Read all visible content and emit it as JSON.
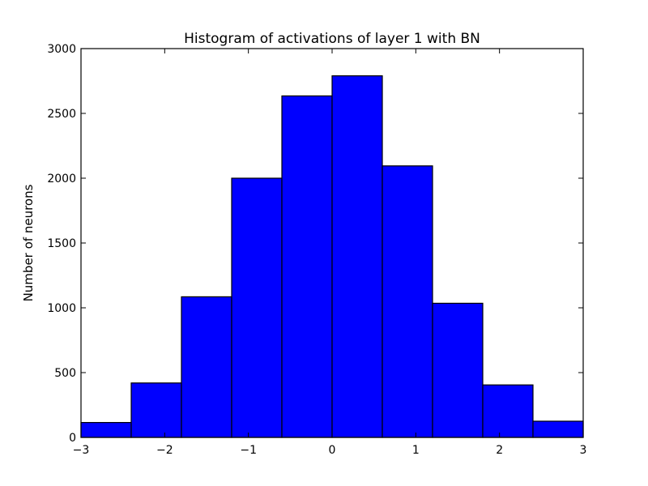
{
  "chart_data": {
    "type": "bar",
    "title": "Histogram of activations of layer 1  with BN",
    "xlabel": "",
    "ylabel": "Number of neurons",
    "xlim": [
      -3,
      3
    ],
    "ylim": [
      0,
      3000
    ],
    "bin_edges": [
      -3,
      -2.4,
      -1.8,
      -1.2,
      -0.6,
      0,
      0.6,
      1.2,
      1.8,
      2.4,
      3
    ],
    "values": [
      115,
      420,
      1085,
      2000,
      2635,
      2790,
      2095,
      1035,
      405,
      125
    ],
    "x_ticks": [
      {
        "value": -3,
        "label": "−3"
      },
      {
        "value": -2,
        "label": "−2"
      },
      {
        "value": -1,
        "label": "−1"
      },
      {
        "value": 0,
        "label": "0"
      },
      {
        "value": 1,
        "label": "1"
      },
      {
        "value": 2,
        "label": "2"
      },
      {
        "value": 3,
        "label": "3"
      }
    ],
    "y_ticks": [
      {
        "value": 0,
        "label": "0"
      },
      {
        "value": 500,
        "label": "500"
      },
      {
        "value": 1000,
        "label": "1000"
      },
      {
        "value": 1500,
        "label": "1500"
      },
      {
        "value": 2000,
        "label": "2000"
      },
      {
        "value": 2500,
        "label": "2500"
      },
      {
        "value": 3000,
        "label": "3000"
      }
    ],
    "grid": false,
    "bar_color": "#0000ff",
    "edge_color": "#000000"
  }
}
